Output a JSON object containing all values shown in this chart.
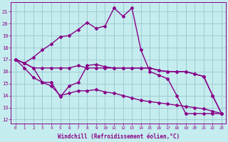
{
  "xlabel": "Windchill (Refroidissement éolien,°C)",
  "background_color": "#c5ecee",
  "grid_color": "#9dcdd4",
  "line_color": "#880088",
  "xlim": [
    -0.5,
    23.5
  ],
  "ylim": [
    11.7,
    21.8
  ],
  "yticks": [
    12,
    13,
    14,
    15,
    16,
    17,
    18,
    19,
    20,
    21
  ],
  "xticks": [
    0,
    1,
    2,
    3,
    4,
    5,
    6,
    7,
    8,
    9,
    10,
    11,
    12,
    13,
    14,
    15,
    16,
    17,
    18,
    19,
    20,
    21,
    22,
    23
  ],
  "line1_x": [
    0,
    1,
    2,
    3,
    4,
    5,
    6,
    7,
    8,
    9,
    10,
    11,
    12,
    13,
    14,
    15,
    16,
    17,
    18,
    19,
    20,
    21,
    22,
    23
  ],
  "line1_y": [
    17.0,
    16.7,
    16.3,
    16.3,
    16.3,
    16.3,
    16.3,
    16.5,
    16.3,
    16.3,
    16.3,
    16.3,
    16.3,
    16.3,
    16.3,
    16.3,
    16.1,
    16.0,
    16.0,
    16.0,
    15.8,
    15.6,
    14.0,
    12.5
  ],
  "line2_x": [
    0,
    1,
    2,
    3,
    4,
    5,
    6,
    7,
    8,
    9,
    10,
    11,
    12,
    13,
    14,
    15,
    16,
    17,
    18,
    19,
    20,
    21,
    22,
    23
  ],
  "line2_y": [
    17.0,
    16.7,
    17.2,
    17.8,
    18.3,
    18.9,
    19.0,
    19.5,
    20.1,
    19.6,
    19.8,
    21.3,
    20.6,
    21.3,
    17.8,
    16.0,
    15.7,
    15.4,
    14.0,
    12.5,
    12.5,
    12.5,
    12.5,
    12.5
  ],
  "line3_x": [
    0,
    1,
    2,
    3,
    4,
    5,
    6,
    7,
    8,
    9,
    10,
    11,
    12,
    13,
    14,
    15,
    16,
    17,
    18,
    19,
    20,
    21,
    22,
    23
  ],
  "line3_y": [
    17.0,
    16.7,
    16.3,
    15.1,
    15.1,
    13.9,
    14.8,
    15.1,
    16.5,
    16.6,
    16.4,
    16.3,
    16.3,
    16.3,
    16.3,
    16.3,
    16.1,
    16.0,
    16.0,
    16.0,
    15.8,
    15.6,
    14.0,
    12.5
  ],
  "line4_x": [
    0,
    1,
    2,
    3,
    4,
    5,
    6,
    7,
    8,
    9,
    10,
    11,
    12,
    13,
    14,
    15,
    16,
    17,
    18,
    19,
    20,
    21,
    22,
    23
  ],
  "line4_y": [
    17.0,
    16.3,
    15.5,
    15.1,
    14.8,
    14.0,
    14.2,
    14.4,
    14.4,
    14.5,
    14.3,
    14.2,
    14.0,
    13.8,
    13.6,
    13.5,
    13.4,
    13.3,
    13.2,
    13.1,
    13.0,
    12.9,
    12.7,
    12.5
  ]
}
